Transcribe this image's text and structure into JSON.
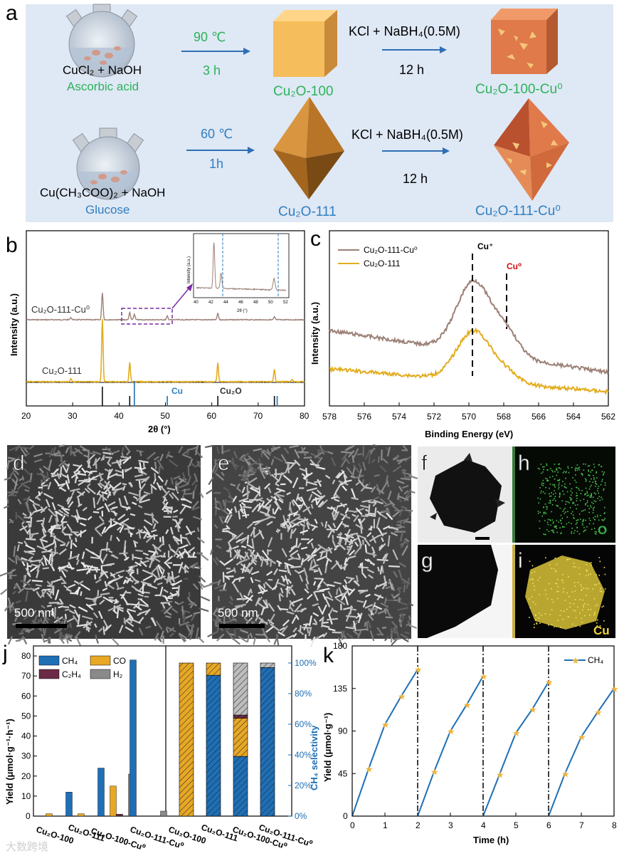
{
  "panel_a": {
    "label": "a",
    "row1": {
      "reactants": "CuCl₂ + NaOH",
      "additive": "Ascorbic acid",
      "cond_temp": "90 ℃",
      "cond_time": "3 h",
      "product1": "Cu₂O-100",
      "reagent": "KCl + NaBH₄(0.5M)",
      "reagent_time": "12 h",
      "product2": "Cu₂O-100-Cu⁰"
    },
    "row2": {
      "reactants": "Cu(CH₃COO)₂ + NaOH",
      "additive": "Glucose",
      "cond_temp": "60 ℃",
      "cond_time": "1h",
      "product1": "Cu₂O-111",
      "reagent": "KCl + NaBH₄(0.5M)",
      "reagent_time": "12 h",
      "product2": "Cu₂O-111-Cu⁰"
    },
    "colors": {
      "bg": "#dfe8f5",
      "green": "#2db35a",
      "blue": "#2f7fc1",
      "cube": "#f4b85a",
      "octa": "#c98a3a",
      "shell": "#e07a4a"
    }
  },
  "panel_b": {
    "label": "b",
    "chart_data": {
      "type": "line",
      "xlabel": "2θ (°)",
      "ylabel": "Intensity (a.u.)",
      "xlim": [
        20,
        80
      ],
      "xticks": [
        "20",
        "30",
        "40",
        "50",
        "60",
        "70",
        "80"
      ],
      "series": [
        {
          "name": "Cu₂O-111-Cu⁰",
          "color": "#9c8076",
          "peaks_2theta": [
            29.6,
            36.4,
            42.3,
            43.3,
            50.4,
            61.3,
            73.5
          ]
        },
        {
          "name": "Cu₂O-111",
          "color": "#e3ad1f",
          "peaks_2theta": [
            29.6,
            36.4,
            42.3,
            61.3,
            73.5,
            77.3
          ]
        }
      ],
      "reference_labels": [
        "Cu",
        "Cu₂O"
      ],
      "reference_Cu": [
        43.3,
        50.4,
        74.1
      ],
      "reference_Cu2O": [
        36.4,
        42.3,
        61.3,
        73.5
      ],
      "inset": {
        "xlabel": "2θ (°)",
        "ylabel": "Intensity (a.u.)",
        "xticks": [
          "40",
          "42",
          "44",
          "46",
          "48",
          "50",
          "52"
        ]
      }
    }
  },
  "panel_c": {
    "label": "c",
    "chart_data": {
      "type": "line",
      "xlabel": "Binding Energy (eV)",
      "ylabel": "Intensity (a.u.)",
      "xlim": [
        578,
        562
      ],
      "xticks": [
        "578",
        "576",
        "574",
        "572",
        "570",
        "568",
        "566",
        "564",
        "562"
      ],
      "series": [
        {
          "name": "Cu₂O-111-Cu⁰",
          "color": "#9c8076"
        },
        {
          "name": "Cu₂O-111",
          "color": "#e3ad1f"
        }
      ],
      "markers": [
        {
          "label": "Cu⁺",
          "position_eV": 569.7,
          "color": "#000000"
        },
        {
          "label": "Cu⁰",
          "position_eV": 567.8,
          "color": "#d01010"
        }
      ]
    }
  },
  "panel_d": {
    "label": "d",
    "scalebar": "500 nm"
  },
  "panel_e": {
    "label": "e",
    "scalebar": "500 nm"
  },
  "panel_f": {
    "label": "f"
  },
  "panel_g": {
    "label": "g"
  },
  "panel_h": {
    "label": "h",
    "element": "O",
    "color": "#3ab04a"
  },
  "panel_i": {
    "label": "i",
    "element": "Cu",
    "color": "#f1d23c"
  },
  "panel_j": {
    "label": "j",
    "chart_data": {
      "type": "bar",
      "categories": [
        "Cu₂O-100",
        "Cu₂O-111",
        "Cu₂O-100-Cu⁰",
        "Cu₂O-111-Cu⁰"
      ],
      "ylabel": "Yield (μmol·g⁻¹·h⁻¹)",
      "ylabel2": "CH₄ selectivity",
      "ylim": [
        0,
        85
      ],
      "yticks": [
        "0",
        "10",
        "20",
        "30",
        "40",
        "50",
        "60",
        "70",
        "80"
      ],
      "y2ticks": [
        "0%",
        "20%",
        "40%",
        "60%",
        "80%",
        "100%"
      ],
      "legend": [
        "CH₄",
        "CO",
        "C₂H₄",
        "H₂"
      ],
      "series": [
        {
          "name": "CH₄",
          "color": "#1f6fb5",
          "values": [
            0,
            12,
            24,
            78
          ]
        },
        {
          "name": "CO",
          "color": "#e8a824",
          "values": [
            1.2,
            1.2,
            15,
            0
          ]
        },
        {
          "name": "C₂H₄",
          "color": "#6b2a46",
          "values": [
            0,
            0,
            1,
            0
          ]
        },
        {
          "name": "H₂",
          "color": "#8a8a8a",
          "values": [
            0,
            0,
            21,
            2.5
          ]
        }
      ],
      "selectivity_stacked_percent": [
        {
          "CH4": 0,
          "CO": 100,
          "C2H4": 0,
          "H2": 0
        },
        {
          "CH4": 92,
          "CO": 8,
          "C2H4": 0,
          "H2": 0
        },
        {
          "CH4": 39,
          "CO": 25,
          "C2H4": 2,
          "H2": 34
        },
        {
          "CH4": 97,
          "CO": 0,
          "C2H4": 0,
          "H2": 3
        }
      ]
    }
  },
  "panel_k": {
    "label": "k",
    "chart_data": {
      "type": "line",
      "xlabel": "Time (h)",
      "ylabel": "Yield (μmol·g⁻¹)",
      "xlim": [
        0,
        8
      ],
      "ylim": [
        0,
        180
      ],
      "xticks": [
        "0",
        "1",
        "2",
        "3",
        "4",
        "5",
        "6",
        "7",
        "8"
      ],
      "yticks": [
        "0",
        "45",
        "90",
        "135",
        "180"
      ],
      "series": [
        {
          "name": "CH₄",
          "color": "#1f6fb5",
          "marker_color": "#f0b43a",
          "x": [
            0,
            0.5,
            1,
            1.5,
            2,
            2,
            2.5,
            3,
            3.5,
            4,
            4,
            4.5,
            5,
            5.5,
            6,
            6,
            6.5,
            7,
            7.5,
            8
          ],
          "y": [
            0,
            50,
            97,
            127,
            155,
            0,
            47,
            90,
            118,
            148,
            0,
            44,
            88,
            113,
            142,
            0,
            45,
            84,
            110,
            135
          ]
        }
      ],
      "cycle_breaks": [
        2,
        4,
        6
      ]
    }
  },
  "watermark": "大数跨境"
}
